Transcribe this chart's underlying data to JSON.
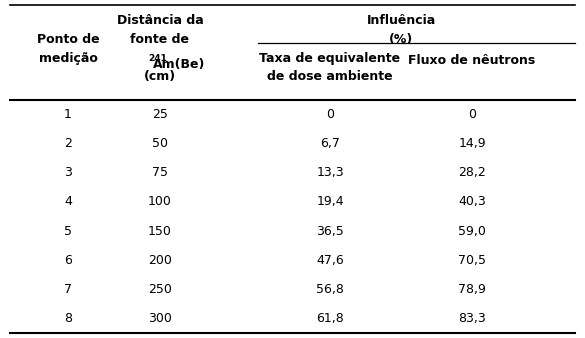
{
  "col1_header_line1": "Ponto de",
  "col1_header_line2": "medição",
  "col2_header_line1": "Distância da",
  "col2_header_line2": "fonte de",
  "col2_header_line3_super": "241",
  "col2_header_line3_main": "Am(Be)",
  "col2_header_line4": "(cm)",
  "col3_header_line1": "Influência",
  "col3_header_line2": "(%)",
  "col3_sub_line1": "Taxa de equivalente",
  "col3_sub_line2": "de dose ambiente",
  "col4_sub": "Fluxo de nêutrons",
  "rows": [
    [
      "1",
      "25",
      "0",
      "0"
    ],
    [
      "2",
      "50",
      "6,7",
      "14,9"
    ],
    [
      "3",
      "75",
      "13,3",
      "28,2"
    ],
    [
      "4",
      "100",
      "19,4",
      "40,3"
    ],
    [
      "5",
      "150",
      "36,5",
      "59,0"
    ],
    [
      "6",
      "200",
      "47,6",
      "70,5"
    ],
    [
      "7",
      "250",
      "56,8",
      "78,9"
    ],
    [
      "8",
      "300",
      "61,8",
      "83,3"
    ]
  ],
  "bg_color": "#ffffff",
  "text_color": "#000000",
  "font_size": 9.0,
  "super_font_size": 6.5
}
